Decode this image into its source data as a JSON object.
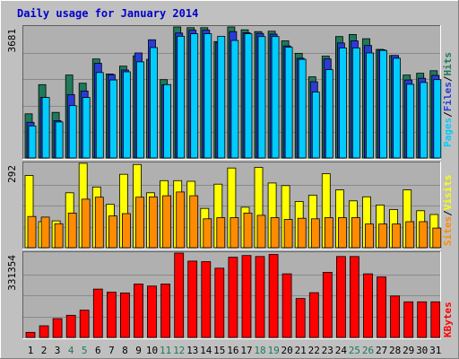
{
  "chart_data": {
    "type": "bar",
    "title": "Daily usage for January 2014",
    "categories": [
      "1",
      "2",
      "3",
      "4",
      "5",
      "6",
      "7",
      "8",
      "9",
      "10",
      "11",
      "12",
      "13",
      "14",
      "15",
      "16",
      "17",
      "18",
      "19",
      "20",
      "21",
      "22",
      "23",
      "24",
      "25",
      "26",
      "27",
      "28",
      "29",
      "30",
      "31"
    ],
    "weekend_days": [
      "4",
      "5",
      "11",
      "12",
      "18",
      "19",
      "25",
      "26"
    ],
    "panels": [
      {
        "name": "hits_files_pages",
        "max_label": "3681",
        "ylim": [
          0,
          3681
        ],
        "legend": [
          "Pages",
          "Files",
          "Hits"
        ],
        "series": [
          {
            "name": "Hits",
            "color": "#1e7a5a",
            "values": [
              1240,
              2060,
              1280,
              2330,
              2100,
              2780,
              2360,
              2580,
              2870,
              2770,
              2200,
              3681,
              3660,
              3660,
              3270,
              3681,
              3600,
              3550,
              3560,
              3290,
              2940,
              2280,
              2860,
              3410,
              3470,
              3350,
              3050,
              2880,
              2330,
              2380,
              2450
            ]
          },
          {
            "name": "Files",
            "color": "#2a3bd6",
            "values": [
              1000,
              1700,
              1050,
              1780,
              1880,
              2660,
              2340,
              2470,
              2950,
              3320,
              2060,
              3510,
              3590,
              3590,
              3240,
              3550,
              3520,
              3500,
              3480,
              3150,
              2800,
              2140,
              2780,
              3230,
              3290,
              3160,
              3040,
              2880,
              2190,
              2240,
              2320
            ]
          },
          {
            "name": "Pages",
            "color": "#00ccff",
            "values": [
              900,
              1700,
              1010,
              1470,
              1700,
              2400,
              2190,
              2420,
              2700,
              3100,
              2060,
              3420,
              3490,
              3490,
              3420,
              3300,
              3490,
              3410,
              3410,
              3110,
              2770,
              1850,
              2480,
              3090,
              3090,
              2950,
              3020,
              2800,
              2070,
              2120,
              2200
            ]
          }
        ]
      },
      {
        "name": "visits_sites",
        "max_label": "292",
        "ylim": [
          0,
          292
        ],
        "legend": [
          "Sites",
          "Visits"
        ],
        "series": [
          {
            "name": "Visits",
            "color": "#ffff00",
            "values": [
              250,
              90,
              93,
              190,
              292,
              210,
              150,
              254,
              288,
              190,
              232,
              232,
              230,
              136,
              220,
              276,
              140,
              278,
              224,
              215,
              160,
              182,
              256,
              200,
              162,
              176,
              148,
              132,
              200,
              128,
              115
            ]
          },
          {
            "name": "Sites",
            "color": "#ff8c00",
            "values": [
              108,
              106,
              83,
              120,
              168,
              175,
              110,
              118,
              175,
              176,
              180,
              193,
              180,
              100,
              104,
              104,
              120,
              112,
              104,
              98,
              102,
              100,
              104,
              104,
              104,
              82,
              82,
              82,
              90,
              90,
              68
            ]
          }
        ]
      },
      {
        "name": "kbytes",
        "max_label": "331354",
        "ylim": [
          0,
          331354
        ],
        "legend": [
          "KBytes"
        ],
        "series": [
          {
            "name": "KBytes",
            "color": "#ff0000",
            "values": [
              20000,
              46000,
              74000,
              87000,
              107000,
              190000,
              178000,
              175000,
              210000,
              202000,
              210000,
              331354,
              300000,
              298000,
              272000,
              315000,
              322000,
              318000,
              326000,
              250000,
              153000,
              176000,
              256000,
              318000,
              318000,
              250000,
              238000,
              163000,
              140000,
              140000,
              140000
            ]
          }
        ]
      }
    ]
  }
}
